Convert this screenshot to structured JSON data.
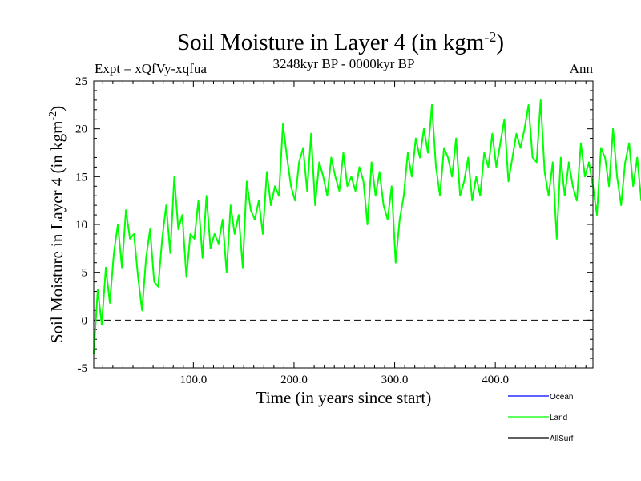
{
  "chart_data": {
    "type": "line",
    "title": "Soil Moisture in Layer 4 (in kgm",
    "title_sup": "-2",
    "title_close": ")",
    "expt_label": "Expt = xQfVy-xqfua",
    "period_label": "3248kyr BP - 0000kyr BP",
    "season_label": "Ann",
    "xlabel": "Time (in years since start)",
    "ylabel": "Soil Moisture in Layer 4 (in kgm",
    "ylabel_sup": "-2",
    "ylabel_close": ")",
    "xlim": [
      1,
      497
    ],
    "ylim": [
      -5,
      25
    ],
    "x_ticks": [
      100,
      200,
      300,
      400
    ],
    "x_tick_labels": [
      "100.0",
      "200.0",
      "300.0",
      "400.0"
    ],
    "y_ticks": [
      -5,
      0,
      5,
      10,
      15,
      20,
      25
    ],
    "y_tick_labels": [
      "-5",
      "0",
      "5",
      "10",
      "15",
      "20",
      "25"
    ],
    "zero_line": true,
    "legend_position": "bottom-right",
    "legend": [
      {
        "name": "Ocean",
        "color": "#0000ff"
      },
      {
        "name": "Land",
        "color": "#00ff00"
      },
      {
        "name": "AllSurf",
        "color": "#000000"
      }
    ],
    "series": [
      {
        "name": "Land",
        "color": "#00ff00",
        "x_start": 1,
        "x_step": 4,
        "values": [
          -3.5,
          3.2,
          -0.5,
          5.5,
          1.8,
          7.0,
          10.0,
          5.5,
          11.5,
          8.5,
          9.0,
          4.5,
          1.0,
          6.5,
          9.5,
          4.0,
          3.5,
          8.5,
          12.0,
          7.0,
          15.0,
          9.5,
          11.0,
          4.5,
          9.0,
          8.5,
          12.5,
          6.5,
          13.0,
          7.5,
          9.0,
          8.0,
          10.5,
          5.0,
          12.0,
          9.0,
          11.0,
          5.5,
          14.5,
          11.5,
          10.5,
          12.5,
          9.0,
          15.5,
          12.0,
          14.0,
          13.0,
          20.5,
          17.0,
          14.0,
          12.5,
          16.5,
          18.0,
          13.5,
          19.5,
          12.0,
          16.5,
          15.0,
          13.0,
          17.0,
          15.0,
          13.5,
          17.5,
          14.0,
          15.0,
          13.5,
          16.0,
          14.5,
          10.0,
          16.5,
          13.0,
          15.5,
          12.0,
          10.5,
          14.0,
          6.0,
          10.5,
          13.0,
          17.5,
          15.0,
          19.0,
          17.0,
          20.0,
          17.5,
          22.5,
          16.0,
          13.0,
          18.0,
          17.0,
          15.0,
          19.0,
          13.0,
          14.5,
          17.0,
          12.5,
          15.0,
          13.0,
          17.5,
          16.0,
          19.5,
          16.0,
          18.5,
          21.0,
          14.5,
          17.0,
          19.5,
          18.0,
          20.0,
          22.5,
          17.0,
          16.5,
          23.0,
          15.5,
          13.0,
          16.5,
          8.5,
          17.0,
          13.0,
          16.5,
          14.0,
          12.5,
          18.5,
          15.0,
          16.5,
          14.0,
          11.0,
          18.0,
          17.0,
          14.0,
          20.0,
          15.0,
          12.0,
          16.5,
          18.5,
          14.0,
          17.0,
          12.5,
          16.5,
          10.5,
          15.0,
          20.5,
          16.0,
          18.5,
          14.0,
          19.0,
          9.0,
          16.0,
          18.0,
          14.0,
          20.5,
          17.0,
          13.0,
          16.0,
          8.5,
          19.0,
          16.5,
          18.0,
          14.0,
          15.5,
          13.0,
          17.0,
          19.5,
          15.0,
          16.5,
          11.0,
          16.0,
          14.0,
          20.0,
          12.5,
          16.0,
          14.5,
          24.0,
          17.0,
          12.0,
          21.0,
          17.5,
          13.0,
          6.5,
          9.0,
          11.5,
          18.5,
          16.0
        ]
      }
    ]
  }
}
